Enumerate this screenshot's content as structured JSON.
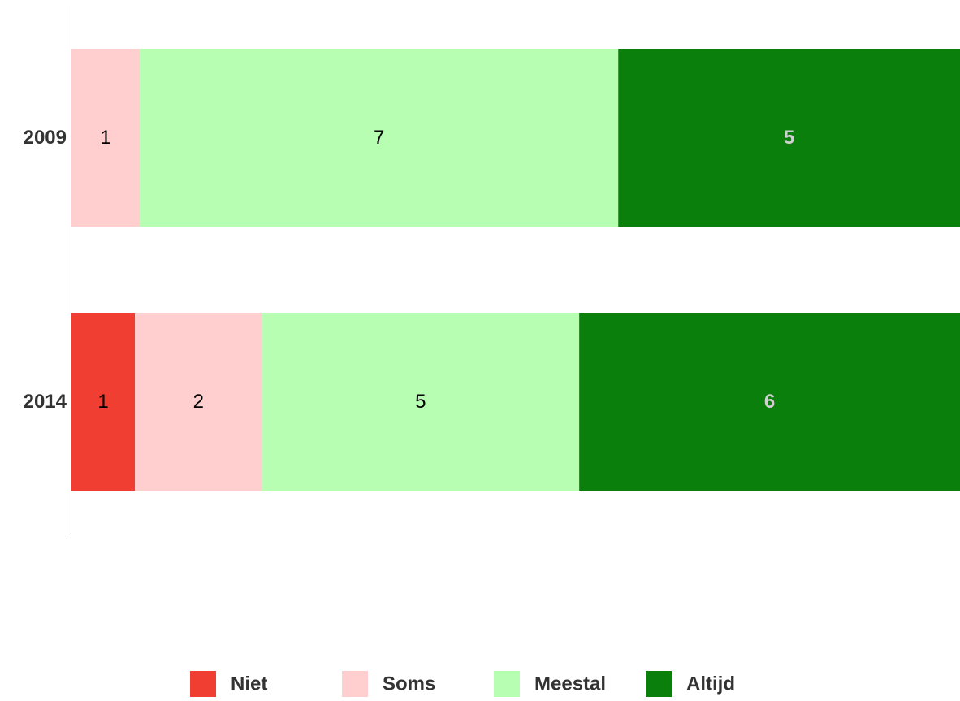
{
  "chart_data": {
    "type": "stacked_percent_bar_horizontal",
    "categories": [
      "2009",
      "2014"
    ],
    "series": [
      {
        "name": "Niet",
        "color": "#f03e32",
        "label_color": "#000000",
        "values": [
          null,
          1
        ]
      },
      {
        "name": "Soms",
        "color": "#ffcfcf",
        "label_color": "#000000",
        "values": [
          1,
          2
        ]
      },
      {
        "name": "Meestal",
        "color": "#b7feb2",
        "label_color": "#000000",
        "values": [
          7,
          5
        ]
      },
      {
        "name": "Altijd",
        "color": "#0a7f0b",
        "label_color": "#d0d0d0",
        "values": [
          5,
          6
        ]
      }
    ],
    "legend": "bottom"
  }
}
